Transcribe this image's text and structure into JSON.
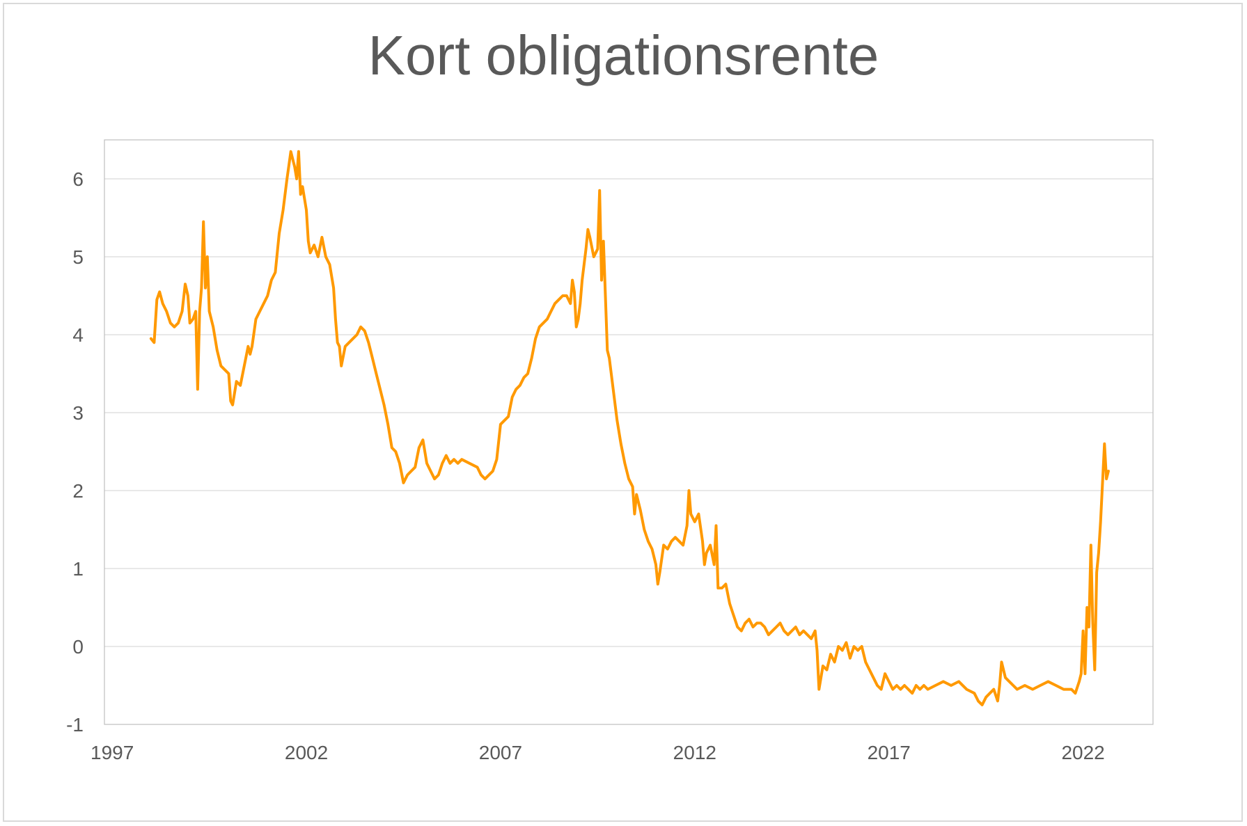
{
  "chart_data": {
    "type": "line",
    "title": "Kort obligationsrente",
    "xlabel": "",
    "ylabel": "",
    "xlim": [
      1996.8,
      2023.8
    ],
    "ylim": [
      -1,
      6.5
    ],
    "x_ticks": [
      1997,
      2002,
      2007,
      2012,
      2017,
      2022
    ],
    "x_tick_labels": [
      "1997",
      "2002",
      "2007",
      "2012",
      "2017",
      "2022"
    ],
    "y_ticks": [
      -1,
      0,
      1,
      2,
      3,
      4,
      5,
      6
    ],
    "y_tick_labels": [
      "-1",
      "0",
      "1",
      "2",
      "3",
      "4",
      "5",
      "6"
    ],
    "grid": "horizontal",
    "legend": "none",
    "series": [
      {
        "color": "#ff9900",
        "points": [
          [
            1998.0,
            3.95
          ],
          [
            1998.08,
            3.9
          ],
          [
            1998.15,
            4.45
          ],
          [
            1998.22,
            4.55
          ],
          [
            1998.3,
            4.4
          ],
          [
            1998.4,
            4.3
          ],
          [
            1998.5,
            4.15
          ],
          [
            1998.6,
            4.1
          ],
          [
            1998.7,
            4.15
          ],
          [
            1998.8,
            4.3
          ],
          [
            1998.88,
            4.65
          ],
          [
            1998.95,
            4.5
          ],
          [
            1999.0,
            4.15
          ],
          [
            1999.08,
            4.2
          ],
          [
            1999.15,
            4.3
          ],
          [
            1999.2,
            3.3
          ],
          [
            1999.25,
            4.3
          ],
          [
            1999.3,
            4.6
          ],
          [
            1999.35,
            5.45
          ],
          [
            1999.4,
            4.6
          ],
          [
            1999.45,
            5.0
          ],
          [
            1999.5,
            4.3
          ],
          [
            1999.6,
            4.1
          ],
          [
            1999.7,
            3.8
          ],
          [
            1999.8,
            3.6
          ],
          [
            1999.9,
            3.55
          ],
          [
            2000.0,
            3.5
          ],
          [
            2000.05,
            3.15
          ],
          [
            2000.1,
            3.1
          ],
          [
            2000.2,
            3.4
          ],
          [
            2000.3,
            3.35
          ],
          [
            2000.4,
            3.6
          ],
          [
            2000.5,
            3.85
          ],
          [
            2000.55,
            3.75
          ],
          [
            2000.6,
            3.85
          ],
          [
            2000.7,
            4.2
          ],
          [
            2000.8,
            4.3
          ],
          [
            2000.9,
            4.4
          ],
          [
            2001.0,
            4.5
          ],
          [
            2001.1,
            4.7
          ],
          [
            2001.2,
            4.8
          ],
          [
            2001.3,
            5.3
          ],
          [
            2001.4,
            5.6
          ],
          [
            2001.5,
            6.0
          ],
          [
            2001.6,
            6.35
          ],
          [
            2001.7,
            6.15
          ],
          [
            2001.75,
            6.0
          ],
          [
            2001.8,
            6.35
          ],
          [
            2001.85,
            5.8
          ],
          [
            2001.9,
            5.9
          ],
          [
            2002.0,
            5.6
          ],
          [
            2002.05,
            5.2
          ],
          [
            2002.1,
            5.05
          ],
          [
            2002.2,
            5.15
          ],
          [
            2002.3,
            5.0
          ],
          [
            2002.4,
            5.25
          ],
          [
            2002.5,
            5.0
          ],
          [
            2002.6,
            4.9
          ],
          [
            2002.7,
            4.6
          ],
          [
            2002.75,
            4.2
          ],
          [
            2002.8,
            3.9
          ],
          [
            2002.85,
            3.85
          ],
          [
            2002.9,
            3.6
          ],
          [
            2003.0,
            3.85
          ],
          [
            2003.1,
            3.9
          ],
          [
            2003.2,
            3.95
          ],
          [
            2003.3,
            4.0
          ],
          [
            2003.4,
            4.1
          ],
          [
            2003.5,
            4.05
          ],
          [
            2003.6,
            3.9
          ],
          [
            2003.7,
            3.7
          ],
          [
            2003.8,
            3.5
          ],
          [
            2003.9,
            3.3
          ],
          [
            2004.0,
            3.1
          ],
          [
            2004.1,
            2.85
          ],
          [
            2004.2,
            2.55
          ],
          [
            2004.3,
            2.5
          ],
          [
            2004.4,
            2.35
          ],
          [
            2004.5,
            2.1
          ],
          [
            2004.6,
            2.2
          ],
          [
            2004.7,
            2.25
          ],
          [
            2004.8,
            2.3
          ],
          [
            2004.9,
            2.55
          ],
          [
            2005.0,
            2.65
          ],
          [
            2005.1,
            2.35
          ],
          [
            2005.2,
            2.25
          ],
          [
            2005.3,
            2.15
          ],
          [
            2005.4,
            2.2
          ],
          [
            2005.5,
            2.35
          ],
          [
            2005.6,
            2.45
          ],
          [
            2005.7,
            2.35
          ],
          [
            2005.8,
            2.4
          ],
          [
            2005.9,
            2.35
          ],
          [
            2006.0,
            2.4
          ],
          [
            2006.2,
            2.35
          ],
          [
            2006.4,
            2.3
          ],
          [
            2006.5,
            2.2
          ],
          [
            2006.6,
            2.15
          ],
          [
            2006.7,
            2.2
          ],
          [
            2006.8,
            2.25
          ],
          [
            2006.9,
            2.4
          ],
          [
            2007.0,
            2.85
          ],
          [
            2007.1,
            2.9
          ],
          [
            2007.2,
            2.95
          ],
          [
            2007.3,
            3.2
          ],
          [
            2007.4,
            3.3
          ],
          [
            2007.5,
            3.35
          ],
          [
            2007.6,
            3.45
          ],
          [
            2007.7,
            3.5
          ],
          [
            2007.8,
            3.7
          ],
          [
            2007.9,
            3.95
          ],
          [
            2008.0,
            4.1
          ],
          [
            2008.1,
            4.15
          ],
          [
            2008.2,
            4.2
          ],
          [
            2008.3,
            4.3
          ],
          [
            2008.4,
            4.4
          ],
          [
            2008.5,
            4.45
          ],
          [
            2008.6,
            4.5
          ],
          [
            2008.7,
            4.5
          ],
          [
            2008.8,
            4.4
          ],
          [
            2008.85,
            4.7
          ],
          [
            2008.9,
            4.55
          ],
          [
            2008.95,
            4.1
          ],
          [
            2009.0,
            4.2
          ],
          [
            2009.05,
            4.4
          ],
          [
            2009.1,
            4.7
          ],
          [
            2009.2,
            5.1
          ],
          [
            2009.25,
            5.35
          ],
          [
            2009.3,
            5.25
          ],
          [
            2009.4,
            5.0
          ],
          [
            2009.5,
            5.1
          ],
          [
            2009.55,
            5.85
          ],
          [
            2009.6,
            4.7
          ],
          [
            2009.65,
            5.2
          ],
          [
            2009.7,
            4.5
          ],
          [
            2009.75,
            3.8
          ],
          [
            2009.8,
            3.7
          ],
          [
            2009.9,
            3.3
          ],
          [
            2010.0,
            2.9
          ],
          [
            2010.1,
            2.6
          ],
          [
            2010.2,
            2.35
          ],
          [
            2010.3,
            2.15
          ],
          [
            2010.4,
            2.05
          ],
          [
            2010.45,
            1.7
          ],
          [
            2010.5,
            1.95
          ],
          [
            2010.6,
            1.75
          ],
          [
            2010.7,
            1.5
          ],
          [
            2010.8,
            1.35
          ],
          [
            2010.9,
            1.25
          ],
          [
            2011.0,
            1.05
          ],
          [
            2011.05,
            0.8
          ],
          [
            2011.1,
            0.95
          ],
          [
            2011.2,
            1.3
          ],
          [
            2011.3,
            1.25
          ],
          [
            2011.4,
            1.35
          ],
          [
            2011.5,
            1.4
          ],
          [
            2011.6,
            1.35
          ],
          [
            2011.7,
            1.3
          ],
          [
            2011.8,
            1.55
          ],
          [
            2011.85,
            2.0
          ],
          [
            2011.9,
            1.7
          ],
          [
            2012.0,
            1.6
          ],
          [
            2012.1,
            1.7
          ],
          [
            2012.2,
            1.35
          ],
          [
            2012.25,
            1.05
          ],
          [
            2012.3,
            1.2
          ],
          [
            2012.4,
            1.3
          ],
          [
            2012.5,
            1.05
          ],
          [
            2012.55,
            1.55
          ],
          [
            2012.6,
            0.75
          ],
          [
            2012.7,
            0.75
          ],
          [
            2012.8,
            0.8
          ],
          [
            2012.9,
            0.55
          ],
          [
            2013.0,
            0.4
          ],
          [
            2013.1,
            0.25
          ],
          [
            2013.2,
            0.2
          ],
          [
            2013.3,
            0.3
          ],
          [
            2013.4,
            0.35
          ],
          [
            2013.5,
            0.25
          ],
          [
            2013.6,
            0.3
          ],
          [
            2013.7,
            0.3
          ],
          [
            2013.8,
            0.25
          ],
          [
            2013.9,
            0.15
          ],
          [
            2014.0,
            0.2
          ],
          [
            2014.1,
            0.25
          ],
          [
            2014.2,
            0.3
          ],
          [
            2014.3,
            0.2
          ],
          [
            2014.4,
            0.15
          ],
          [
            2014.5,
            0.2
          ],
          [
            2014.6,
            0.25
          ],
          [
            2014.7,
            0.15
          ],
          [
            2014.8,
            0.2
          ],
          [
            2014.9,
            0.15
          ],
          [
            2015.0,
            0.1
          ],
          [
            2015.1,
            0.2
          ],
          [
            2015.15,
            -0.05
          ],
          [
            2015.2,
            -0.55
          ],
          [
            2015.3,
            -0.25
          ],
          [
            2015.4,
            -0.3
          ],
          [
            2015.5,
            -0.1
          ],
          [
            2015.6,
            -0.2
          ],
          [
            2015.7,
            0.0
          ],
          [
            2015.8,
            -0.05
          ],
          [
            2015.9,
            0.05
          ],
          [
            2016.0,
            -0.15
          ],
          [
            2016.1,
            0.0
          ],
          [
            2016.2,
            -0.05
          ],
          [
            2016.3,
            0.0
          ],
          [
            2016.4,
            -0.2
          ],
          [
            2016.5,
            -0.3
          ],
          [
            2016.6,
            -0.4
          ],
          [
            2016.7,
            -0.5
          ],
          [
            2016.8,
            -0.55
          ],
          [
            2016.9,
            -0.35
          ],
          [
            2017.0,
            -0.45
          ],
          [
            2017.1,
            -0.55
          ],
          [
            2017.2,
            -0.5
          ],
          [
            2017.3,
            -0.55
          ],
          [
            2017.4,
            -0.5
          ],
          [
            2017.5,
            -0.55
          ],
          [
            2017.6,
            -0.6
          ],
          [
            2017.7,
            -0.5
          ],
          [
            2017.8,
            -0.55
          ],
          [
            2017.9,
            -0.5
          ],
          [
            2018.0,
            -0.55
          ],
          [
            2018.2,
            -0.5
          ],
          [
            2018.4,
            -0.45
          ],
          [
            2018.6,
            -0.5
          ],
          [
            2018.8,
            -0.45
          ],
          [
            2019.0,
            -0.55
          ],
          [
            2019.2,
            -0.6
          ],
          [
            2019.3,
            -0.7
          ],
          [
            2019.4,
            -0.75
          ],
          [
            2019.5,
            -0.65
          ],
          [
            2019.6,
            -0.6
          ],
          [
            2019.7,
            -0.55
          ],
          [
            2019.8,
            -0.7
          ],
          [
            2019.85,
            -0.5
          ],
          [
            2019.9,
            -0.2
          ],
          [
            2020.0,
            -0.4
          ],
          [
            2020.1,
            -0.45
          ],
          [
            2020.2,
            -0.5
          ],
          [
            2020.3,
            -0.55
          ],
          [
            2020.5,
            -0.5
          ],
          [
            2020.7,
            -0.55
          ],
          [
            2020.9,
            -0.5
          ],
          [
            2021.1,
            -0.45
          ],
          [
            2021.3,
            -0.5
          ],
          [
            2021.5,
            -0.55
          ],
          [
            2021.7,
            -0.55
          ],
          [
            2021.8,
            -0.6
          ],
          [
            2021.9,
            -0.45
          ],
          [
            2021.95,
            -0.35
          ],
          [
            2022.0,
            0.2
          ],
          [
            2022.05,
            -0.35
          ],
          [
            2022.1,
            0.5
          ],
          [
            2022.15,
            0.25
          ],
          [
            2022.2,
            1.3
          ],
          [
            2022.25,
            0.3
          ],
          [
            2022.3,
            -0.3
          ],
          [
            2022.35,
            0.95
          ],
          [
            2022.4,
            1.2
          ],
          [
            2022.45,
            1.6
          ],
          [
            2022.5,
            2.1
          ],
          [
            2022.55,
            2.6
          ],
          [
            2022.6,
            2.15
          ],
          [
            2022.65,
            2.25
          ]
        ]
      }
    ]
  }
}
